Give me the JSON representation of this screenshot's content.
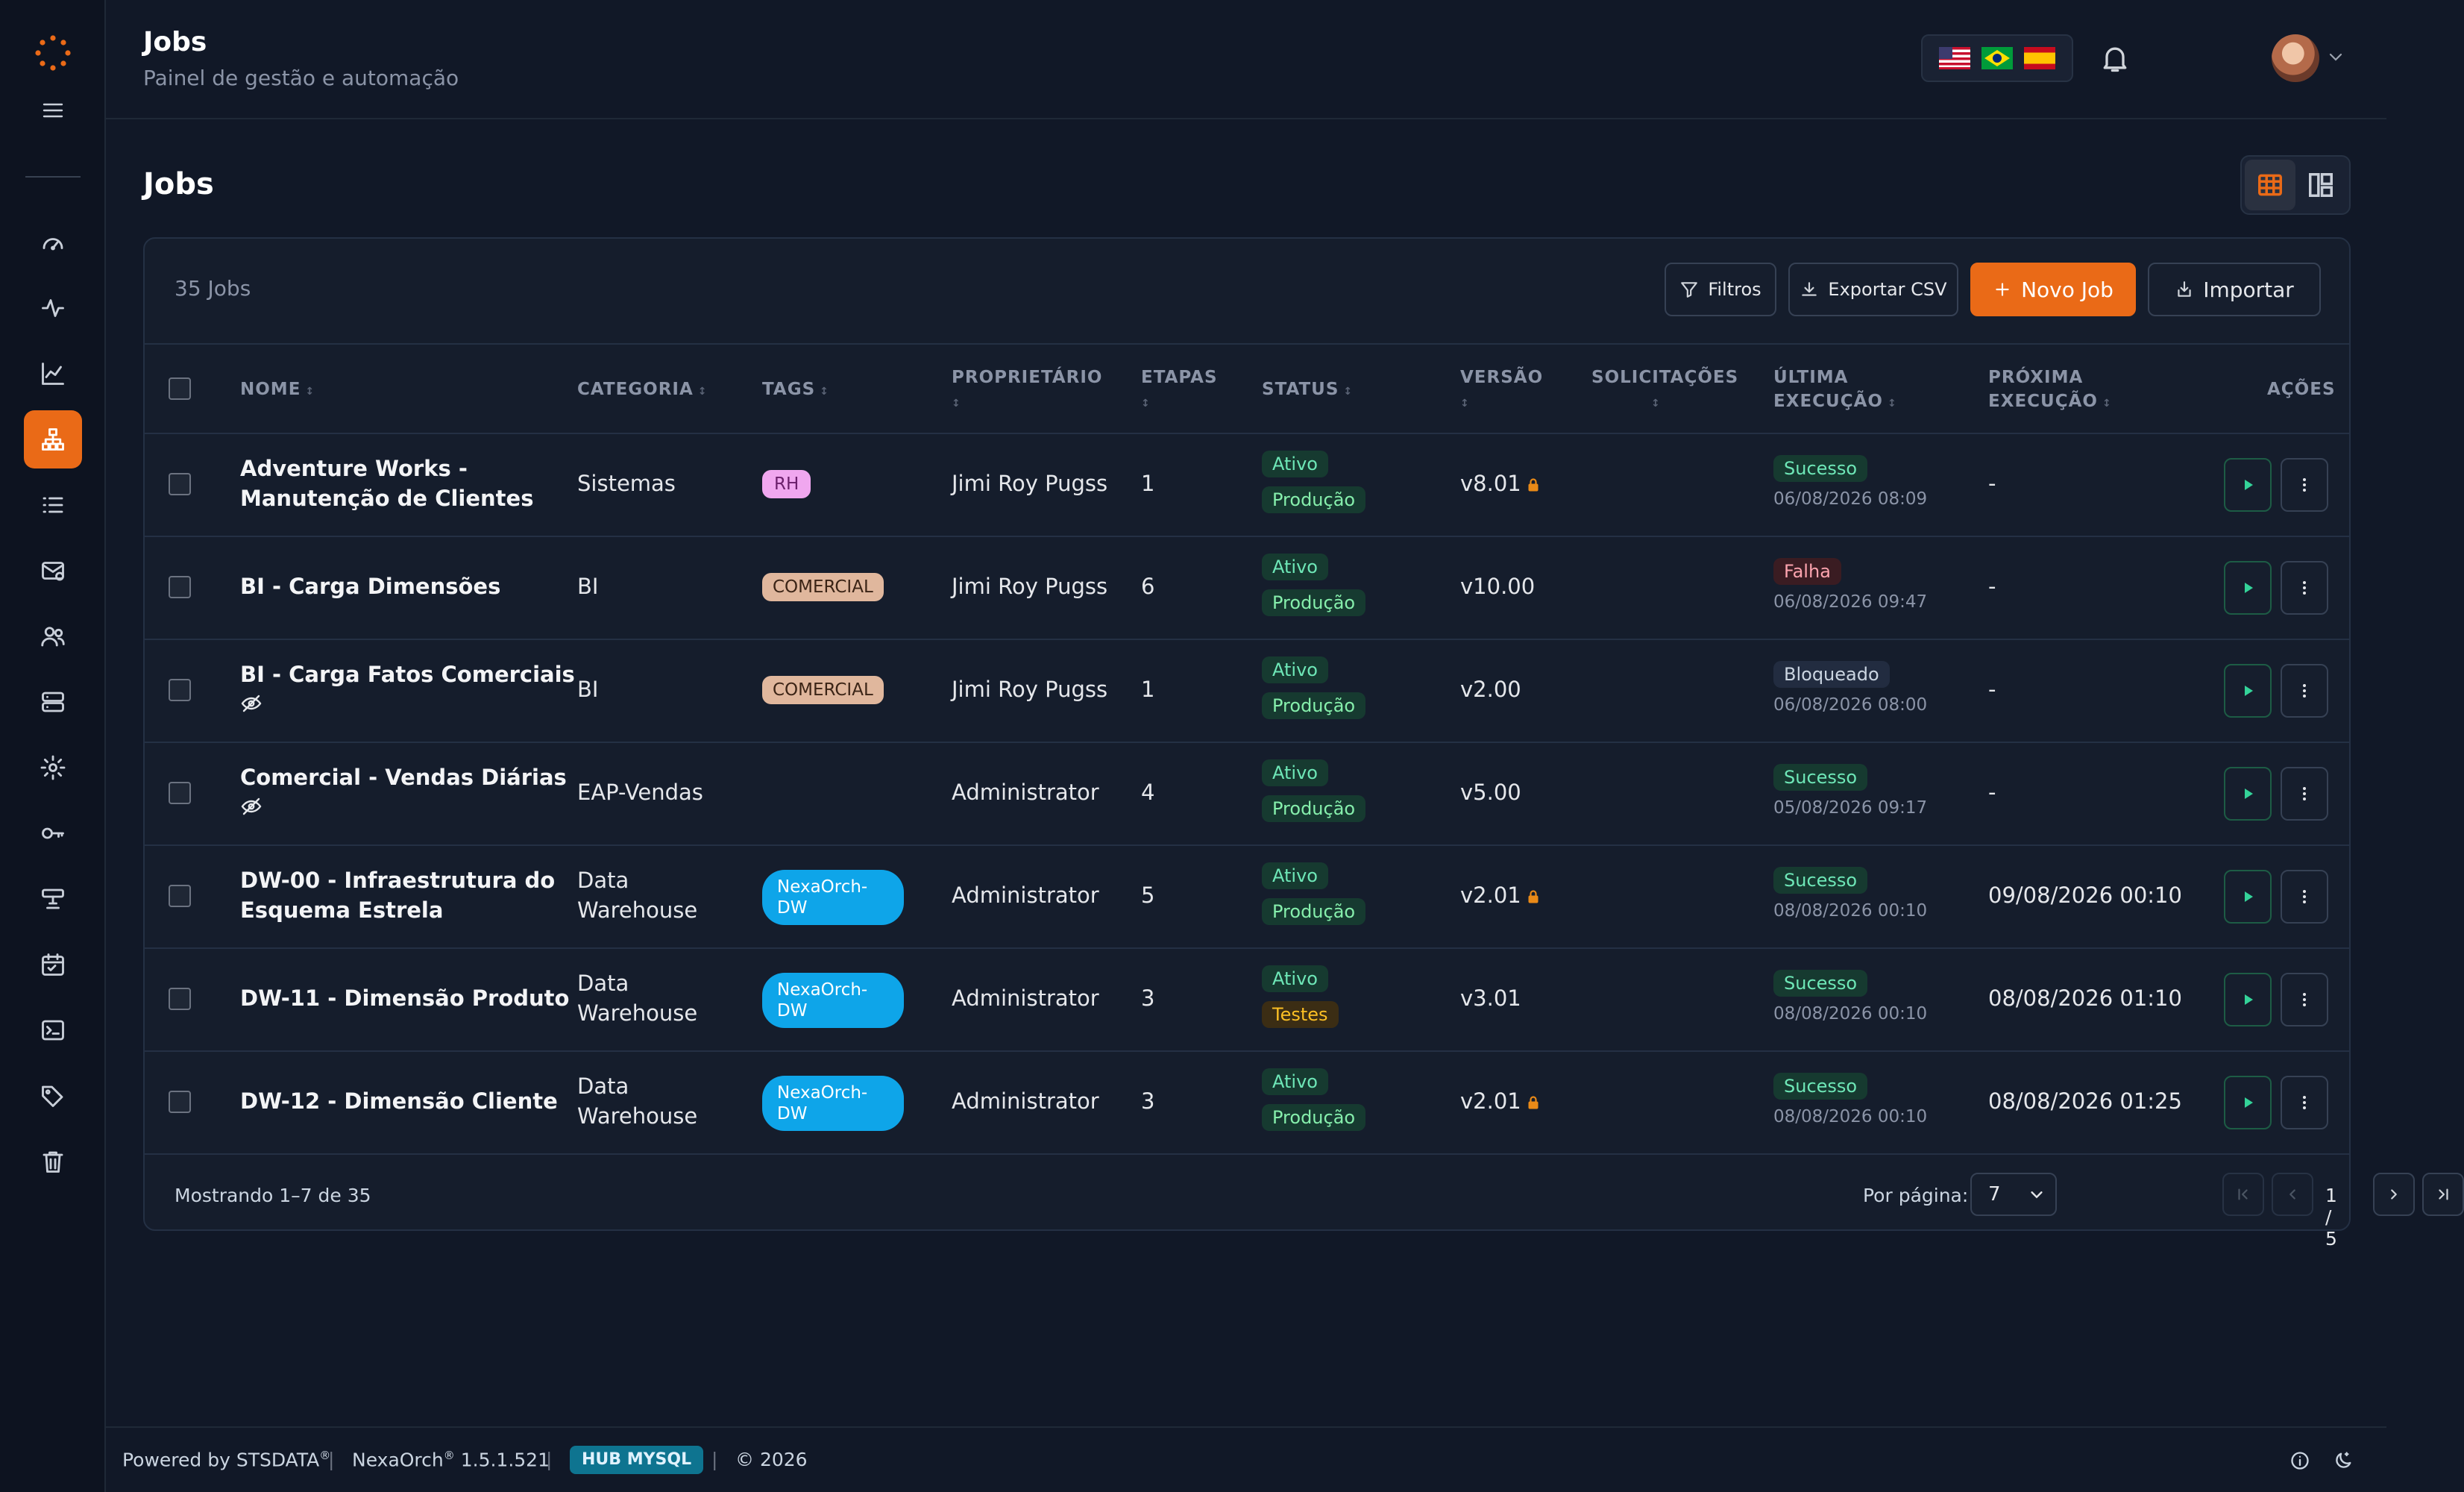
{
  "header": {
    "title": "Jobs",
    "subtitle": "Painel de gestão e automação",
    "flags": [
      "us-flag",
      "br-flag",
      "es-flag"
    ]
  },
  "page": {
    "title": "Jobs"
  },
  "toolbar": {
    "count": "35 Jobs",
    "filters": "Filtros",
    "export": "Exportar CSV",
    "new_job": "Novo Job",
    "import": "Importar"
  },
  "columns": {
    "name": "NOME",
    "category": "CATEGORIA",
    "tags": "TAGS",
    "owner": "PROPRIETÁRIO",
    "steps": "ETAPAS",
    "status": "STATUS",
    "version": "VERSÃO",
    "requests": "SOLICITAÇÕES",
    "last_exec_1": "ÚLTIMA",
    "last_exec_2": "EXECUÇÃO",
    "next_exec_1": "PRÓXIMA",
    "next_exec_2": "EXECUÇÃO",
    "actions": "AÇÕES"
  },
  "rows": [
    {
      "name1": "Adventure Works -",
      "name2": "Manutenção de Clientes",
      "category1": "Sistemas",
      "category2": "",
      "tag": "RH",
      "owner": "Jimi Roy Pugss",
      "steps": "1",
      "status": "Ativo",
      "env": "Produção",
      "version": "v8.01",
      "locked": true,
      "last_status": "Sucesso",
      "last_date": "06/08/2026 08:09",
      "next": "-"
    },
    {
      "name1": "BI - Carga Dimensões",
      "name2": "",
      "category1": "BI",
      "category2": "",
      "tag": "COMERCIAL",
      "owner": "Jimi Roy Pugss",
      "steps": "6",
      "status": "Ativo",
      "env": "Produção",
      "version": "v10.00",
      "locked": false,
      "last_status": "Falha",
      "last_date": "06/08/2026 09:47",
      "next": "-"
    },
    {
      "name1": "BI - Carga Fatos Comerciais",
      "name2": "",
      "category1": "BI",
      "category2": "",
      "tag": "COMERCIAL",
      "owner": "Jimi Roy Pugss",
      "steps": "1",
      "status": "Ativo",
      "env": "Produção",
      "version": "v2.00",
      "locked": false,
      "last_status": "Bloqueado",
      "last_date": "06/08/2026 08:00",
      "next": "-"
    },
    {
      "name1": "Comercial - Vendas Diárias",
      "name2": "",
      "category1": "EAP-Vendas",
      "category2": "",
      "tag": "",
      "owner": "Administrator",
      "steps": "4",
      "status": "Ativo",
      "env": "Produção",
      "version": "v5.00",
      "locked": false,
      "last_status": "Sucesso",
      "last_date": "05/08/2026 09:17",
      "next": "-"
    },
    {
      "name1": "DW-00 - Infraestrutura do",
      "name2": "Esquema Estrela",
      "category1": "Data",
      "category2": "Warehouse",
      "tag": "NexaOrch-DW",
      "owner": "Administrator",
      "steps": "5",
      "status": "Ativo",
      "env": "Produção",
      "version": "v2.01",
      "locked": true,
      "last_status": "Sucesso",
      "last_date": "08/08/2026 00:10",
      "next": "09/08/2026 00:10"
    },
    {
      "name1": "DW-11 - Dimensão Produto",
      "name2": "",
      "category1": "Data",
      "category2": "Warehouse",
      "tag": "NexaOrch-DW",
      "owner": "Administrator",
      "steps": "3",
      "status": "Ativo",
      "env": "Testes",
      "version": "v3.01",
      "locked": false,
      "last_status": "Sucesso",
      "last_date": "08/08/2026 00:10",
      "next": "08/08/2026 01:10"
    },
    {
      "name1": "DW-12 - Dimensão Cliente",
      "name2": "",
      "category1": "Data",
      "category2": "Warehouse",
      "tag": "NexaOrch-DW",
      "owner": "Administrator",
      "steps": "3",
      "status": "Ativo",
      "env": "Produção",
      "version": "v2.01",
      "locked": true,
      "last_status": "Sucesso",
      "last_date": "08/08/2026 00:10",
      "next": "08/08/2026 01:25"
    }
  ],
  "pagination": {
    "showing": "Mostrando 1–7 de 35",
    "per_page_label": "Por página:",
    "per_page": "7",
    "page": "1 / 5"
  },
  "footer": {
    "powered": "Powered by STSDATA",
    "product": "NexaOrch",
    "version": "1.5.1.521",
    "hub": "HUB MYSQL",
    "copyright": "© 2026",
    "registered": "®"
  },
  "colors": {
    "accent": "#ea6a17",
    "background": "#111827",
    "card": "#151d2c"
  }
}
